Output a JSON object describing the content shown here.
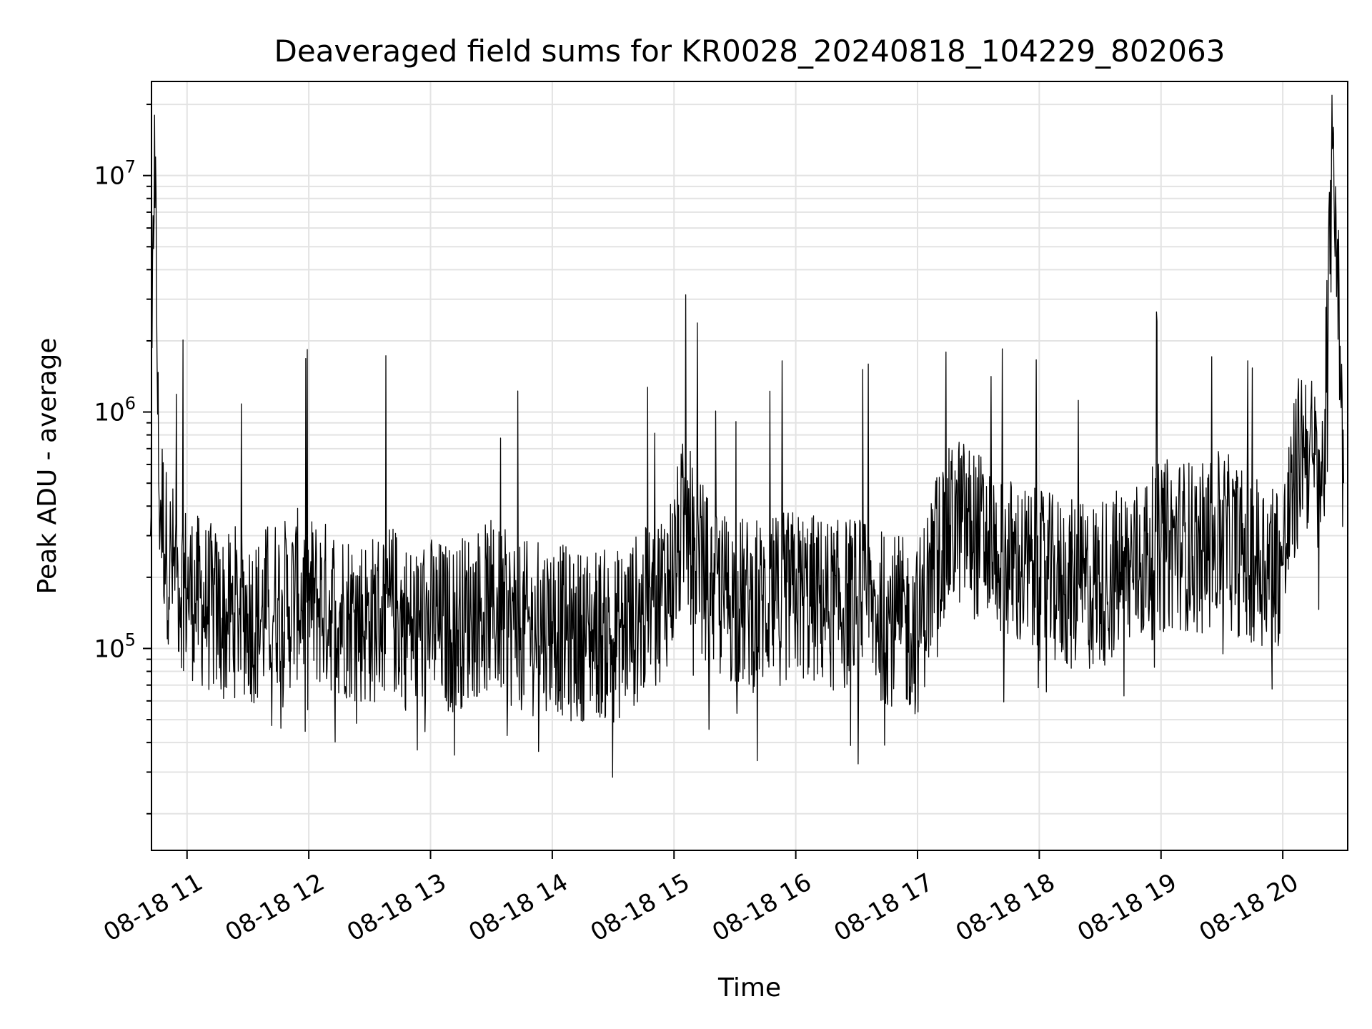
{
  "chart_data": {
    "type": "line",
    "title": "Deaveraged field sums for KR0028_20240818_104229_802063",
    "xlabel": "Time",
    "ylabel": "Peak ADU - average",
    "xlim": [
      "08-18 10:42:29",
      "08-18 20:32"
    ],
    "ylim": [
      14000,
      25000000
    ],
    "yscale": "log",
    "grid": true,
    "line_color": "#000000",
    "x_ticks": [
      "08-18 11",
      "08-18 12",
      "08-18 13",
      "08-18 14",
      "08-18 15",
      "08-18 16",
      "08-18 17",
      "08-18 18",
      "08-18 19",
      "08-18 20"
    ],
    "y_ticks": [
      {
        "base": "10",
        "exp": "5",
        "value": 100000
      },
      {
        "base": "10",
        "exp": "6",
        "value": 1000000
      },
      {
        "base": "10",
        "exp": "7",
        "value": 10000000
      }
    ],
    "series": [
      {
        "x": [
          "10:42",
          "10:44",
          "10:46",
          "10:50",
          "10:55",
          "11:00",
          "11:05",
          "11:10",
          "11:15",
          "11:20",
          "11:25",
          "11:30",
          "11:35",
          "11:40",
          "11:45",
          "11:50",
          "11:55",
          "12:00",
          "12:10",
          "12:20",
          "12:30",
          "12:40",
          "12:50",
          "13:00",
          "13:10",
          "13:20",
          "13:30",
          "13:40",
          "13:50",
          "14:00",
          "14:10",
          "14:20",
          "14:30",
          "14:40",
          "14:50",
          "15:00",
          "15:05",
          "15:10",
          "15:20",
          "15:30",
          "15:40",
          "15:50",
          "16:00",
          "16:10",
          "16:20",
          "16:30",
          "16:40",
          "16:50",
          "17:00",
          "17:10",
          "17:20",
          "17:30",
          "17:40",
          "17:50",
          "18:00",
          "18:10",
          "18:20",
          "18:30",
          "18:40",
          "18:50",
          "19:00",
          "19:10",
          "19:20",
          "19:30",
          "19:40",
          "19:50",
          "20:00",
          "20:05",
          "20:10",
          "20:15",
          "20:20",
          "20:25",
          "20:30"
        ],
        "y": [
          300000,
          18000000,
          500000,
          250000,
          200000,
          180000,
          160000,
          150000,
          140000,
          130000,
          150000,
          140000,
          130000,
          150000,
          160000,
          150000,
          170000,
          160000,
          150000,
          140000,
          130000,
          150000,
          120000,
          130000,
          120000,
          140000,
          150000,
          130000,
          120000,
          130000,
          110000,
          120000,
          110000,
          130000,
          150000,
          220000,
          350000,
          260000,
          170000,
          160000,
          150000,
          160000,
          170000,
          160000,
          150000,
          160000,
          140000,
          130000,
          120000,
          260000,
          350000,
          300000,
          250000,
          220000,
          200000,
          190000,
          180000,
          190000,
          210000,
          230000,
          270000,
          280000,
          260000,
          300000,
          250000,
          240000,
          230000,
          450000,
          800000,
          600000,
          500000,
          16000000,
          500000
        ]
      }
    ]
  }
}
